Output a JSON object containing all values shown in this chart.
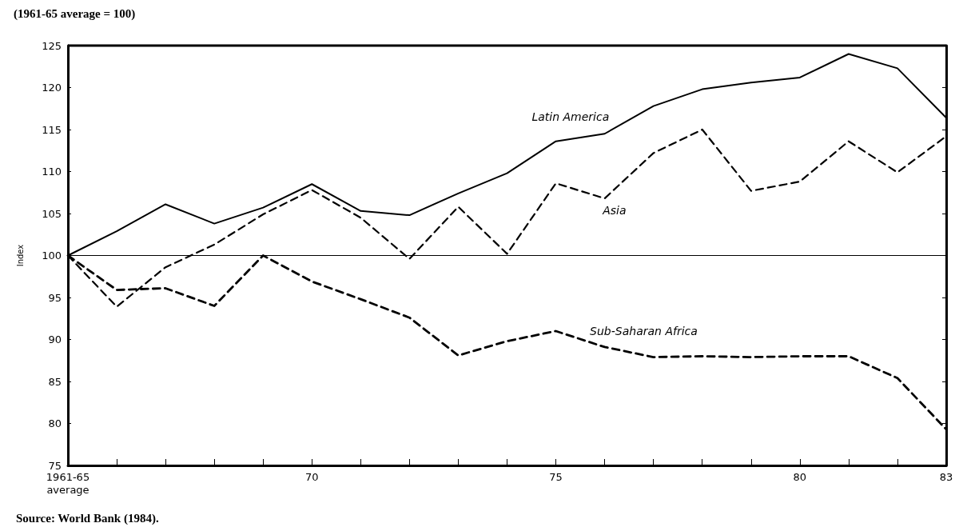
{
  "chart_data": {
    "type": "line",
    "title": "(1961-65 average = 100)",
    "ylabel": "Index",
    "categories": [
      "1961-65\naverage",
      null,
      null,
      null,
      null,
      "70",
      null,
      null,
      null,
      null,
      "75",
      null,
      null,
      null,
      null,
      "80",
      null,
      null,
      "83"
    ],
    "series": [
      {
        "name": "Latin America",
        "color": "#000000",
        "line_style": "solid",
        "values": [
          100,
          102.9,
          106.1,
          103.8,
          105.7,
          108.5,
          105.3,
          104.8,
          107.4,
          109.8,
          113.6,
          114.5,
          117.8,
          119.8,
          120.6,
          121.2,
          124,
          122.3,
          116.4
        ]
      },
      {
        "name": "Asia",
        "color": "#000000",
        "line_style": "dashed",
        "values": [
          100,
          93.9,
          98.6,
          101.3,
          104.9,
          107.8,
          104.5,
          99.6,
          105.8,
          100.2,
          108.6,
          106.8,
          112.2,
          115,
          107.7,
          108.8,
          113.6,
          109.9,
          114.2
        ]
      },
      {
        "name": "Sub-Saharan Africa",
        "color": "#000000",
        "line_style": "dashed",
        "values": [
          100,
          95.9,
          96.1,
          94,
          100,
          96.9,
          94.8,
          92.6,
          88.1,
          89.8,
          91,
          89.1,
          87.9,
          88,
          87.9,
          88,
          88,
          85.4,
          79.3
        ]
      }
    ],
    "ylim": [
      75,
      125
    ],
    "yticks": [
      75,
      80,
      85,
      90,
      95,
      100,
      105,
      110,
      115,
      120,
      125
    ],
    "ref_lines": [
      {
        "axis": "y",
        "value": 100,
        "color": "#000000",
        "line_style": "solid"
      }
    ],
    "annotations": [
      "Source: World Bank (1984)."
    ],
    "grid": false,
    "legend": false,
    "marker": "none"
  }
}
